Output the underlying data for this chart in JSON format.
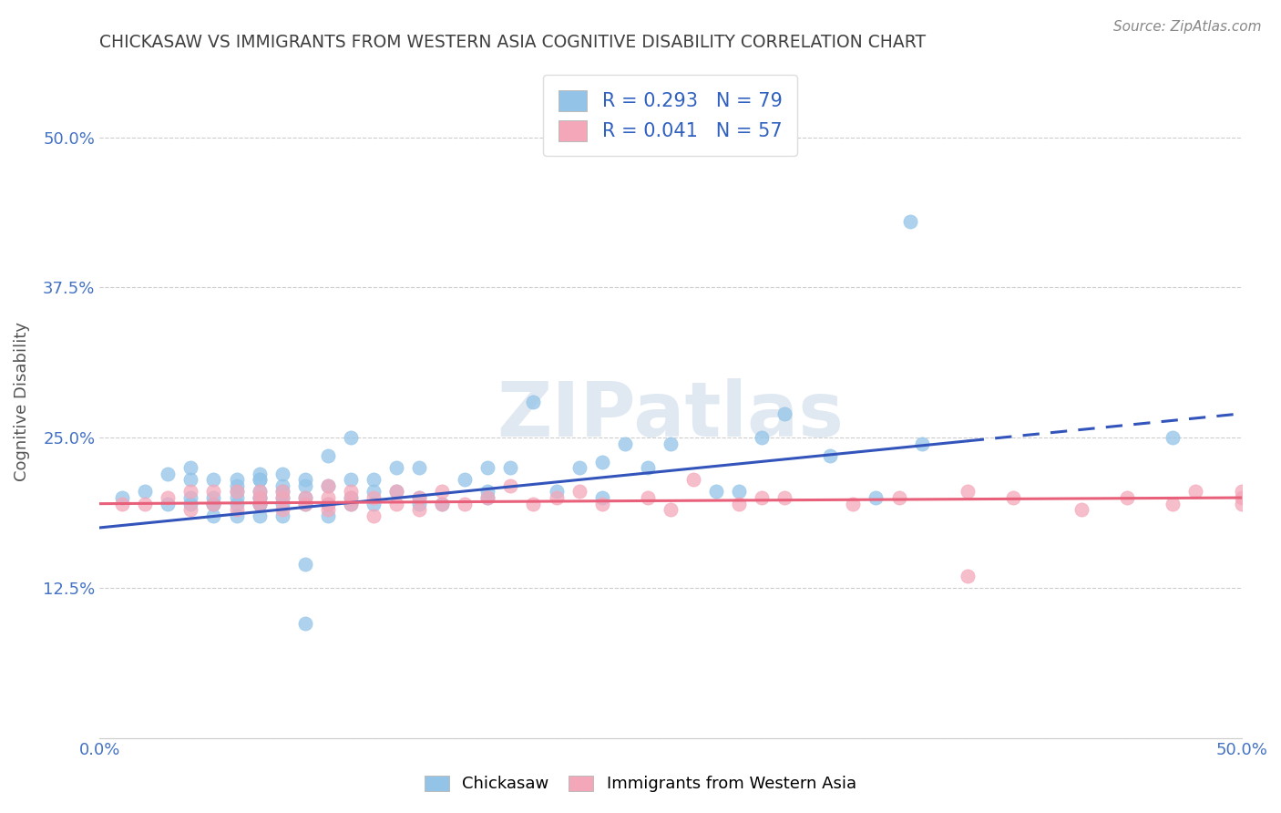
{
  "title": "CHICKASAW VS IMMIGRANTS FROM WESTERN ASIA COGNITIVE DISABILITY CORRELATION CHART",
  "source_text": "Source: ZipAtlas.com",
  "ylabel": "Cognitive Disability",
  "xlim": [
    0.0,
    0.5
  ],
  "ylim": [
    0.0,
    0.56
  ],
  "yticks": [
    0.0,
    0.125,
    0.25,
    0.375,
    0.5
  ],
  "ytick_labels": [
    "",
    "12.5%",
    "25.0%",
    "37.5%",
    "50.0%"
  ],
  "xticks": [
    0.0,
    0.1,
    0.2,
    0.3,
    0.4,
    0.5
  ],
  "xtick_labels": [
    "0.0%",
    "",
    "",
    "",
    "",
    "50.0%"
  ],
  "blue_R": 0.293,
  "blue_N": 79,
  "pink_R": 0.041,
  "pink_N": 57,
  "blue_color": "#93C4E8",
  "pink_color": "#F4A7B9",
  "blue_line_color": "#3355BB",
  "pink_line_color": "#E8607A",
  "legend_label_1": "Chickasaw",
  "legend_label_2": "Immigrants from Western Asia",
  "watermark": "ZIPatlas",
  "background_color": "#FFFFFF",
  "grid_color": "#CCCCCC",
  "title_color": "#404040",
  "blue_line_start_y": 0.175,
  "blue_line_end_y": 0.27,
  "blue_line_solid_end_x": 0.38,
  "pink_line_start_y": 0.195,
  "pink_line_end_y": 0.2,
  "blue_scatter_x": [
    0.01,
    0.02,
    0.03,
    0.03,
    0.04,
    0.04,
    0.04,
    0.04,
    0.05,
    0.05,
    0.05,
    0.05,
    0.05,
    0.06,
    0.06,
    0.06,
    0.06,
    0.06,
    0.06,
    0.07,
    0.07,
    0.07,
    0.07,
    0.07,
    0.07,
    0.07,
    0.07,
    0.07,
    0.08,
    0.08,
    0.08,
    0.08,
    0.08,
    0.08,
    0.09,
    0.09,
    0.09,
    0.09,
    0.09,
    0.1,
    0.1,
    0.1,
    0.1,
    0.11,
    0.11,
    0.11,
    0.11,
    0.12,
    0.12,
    0.12,
    0.13,
    0.13,
    0.14,
    0.14,
    0.14,
    0.15,
    0.16,
    0.17,
    0.17,
    0.17,
    0.18,
    0.19,
    0.2,
    0.21,
    0.22,
    0.22,
    0.23,
    0.24,
    0.25,
    0.27,
    0.28,
    0.29,
    0.3,
    0.32,
    0.34,
    0.36,
    0.355,
    0.47,
    0.09
  ],
  "blue_scatter_y": [
    0.2,
    0.205,
    0.22,
    0.195,
    0.215,
    0.2,
    0.195,
    0.225,
    0.2,
    0.195,
    0.195,
    0.215,
    0.185,
    0.21,
    0.2,
    0.195,
    0.185,
    0.205,
    0.215,
    0.215,
    0.2,
    0.195,
    0.2,
    0.185,
    0.205,
    0.195,
    0.22,
    0.215,
    0.2,
    0.21,
    0.205,
    0.185,
    0.195,
    0.22,
    0.21,
    0.2,
    0.195,
    0.215,
    0.145,
    0.195,
    0.21,
    0.185,
    0.235,
    0.2,
    0.195,
    0.215,
    0.25,
    0.195,
    0.215,
    0.205,
    0.205,
    0.225,
    0.2,
    0.195,
    0.225,
    0.195,
    0.215,
    0.205,
    0.225,
    0.2,
    0.225,
    0.28,
    0.205,
    0.225,
    0.23,
    0.2,
    0.245,
    0.225,
    0.245,
    0.205,
    0.205,
    0.25,
    0.27,
    0.235,
    0.2,
    0.245,
    0.43,
    0.25,
    0.095
  ],
  "pink_scatter_x": [
    0.01,
    0.02,
    0.03,
    0.04,
    0.04,
    0.05,
    0.05,
    0.06,
    0.06,
    0.07,
    0.07,
    0.07,
    0.08,
    0.08,
    0.08,
    0.09,
    0.09,
    0.1,
    0.1,
    0.1,
    0.1,
    0.11,
    0.11,
    0.11,
    0.12,
    0.12,
    0.13,
    0.13,
    0.14,
    0.14,
    0.15,
    0.15,
    0.16,
    0.17,
    0.18,
    0.19,
    0.2,
    0.21,
    0.22,
    0.24,
    0.25,
    0.26,
    0.28,
    0.29,
    0.3,
    0.33,
    0.35,
    0.38,
    0.4,
    0.43,
    0.45,
    0.47,
    0.48,
    0.5,
    0.5,
    0.5,
    0.38
  ],
  "pink_scatter_y": [
    0.195,
    0.195,
    0.2,
    0.19,
    0.205,
    0.195,
    0.205,
    0.19,
    0.205,
    0.195,
    0.2,
    0.205,
    0.19,
    0.2,
    0.205,
    0.195,
    0.2,
    0.19,
    0.195,
    0.2,
    0.21,
    0.195,
    0.2,
    0.205,
    0.185,
    0.2,
    0.195,
    0.205,
    0.19,
    0.2,
    0.195,
    0.205,
    0.195,
    0.2,
    0.21,
    0.195,
    0.2,
    0.205,
    0.195,
    0.2,
    0.19,
    0.215,
    0.195,
    0.2,
    0.2,
    0.195,
    0.2,
    0.205,
    0.2,
    0.19,
    0.2,
    0.195,
    0.205,
    0.2,
    0.195,
    0.205,
    0.135
  ]
}
